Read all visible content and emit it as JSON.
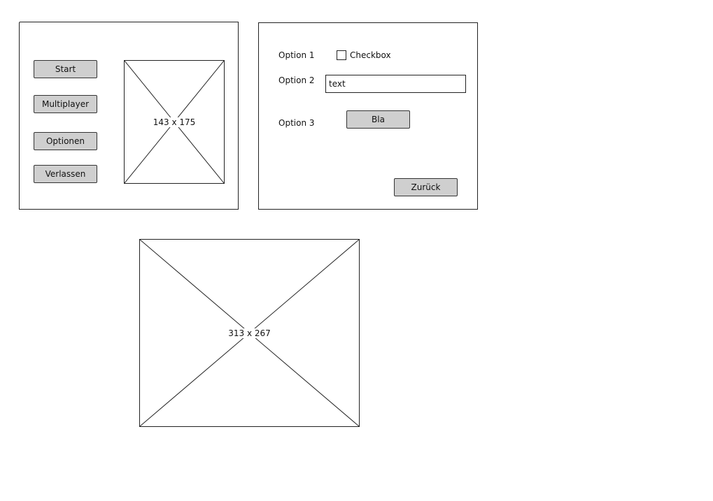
{
  "main_menu": {
    "buttons": {
      "start": "Start",
      "multiplayer": "Multiplayer",
      "options": "Optionen",
      "quit": "Verlassen"
    },
    "image_placeholder": "143 x 175"
  },
  "options_panel": {
    "option1_label": "Option 1",
    "checkbox_label": "Checkbox",
    "option2_label": "Option 2",
    "text_value": "text",
    "option3_label": "Option 3",
    "bla_button": "Bla",
    "back_button": "Zurück"
  },
  "large_image": {
    "placeholder": "313 x 267"
  },
  "colors": {
    "button_fill": "#cfcfcf",
    "border": "#222222",
    "background": "#ffffff"
  }
}
